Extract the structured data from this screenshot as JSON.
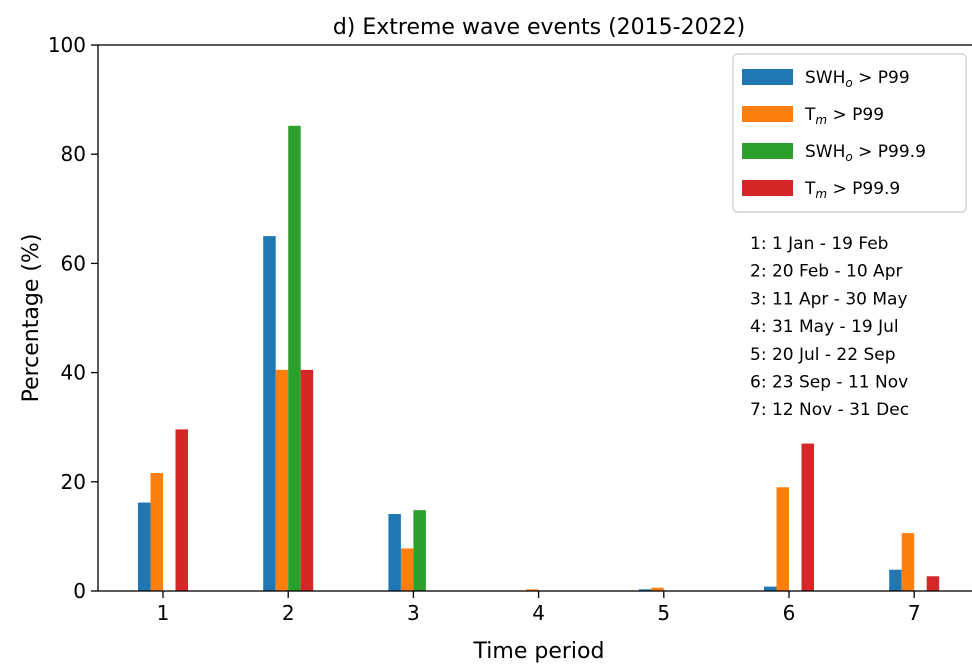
{
  "chart_data": {
    "type": "bar",
    "title": "d) Extreme wave events (2015-2022)",
    "xlabel": "Time period",
    "ylabel": "Percentage (%)",
    "ylim": [
      0,
      100
    ],
    "yticks": [
      0,
      20,
      40,
      60,
      80,
      100
    ],
    "categories": [
      "1",
      "2",
      "3",
      "4",
      "5",
      "6",
      "7"
    ],
    "series": [
      {
        "name": "SWH",
        "name_sub": "o",
        "name_rest": " > P99",
        "color": "#1f77b4",
        "values": [
          16.2,
          65.0,
          14.1,
          0.0,
          0.3,
          0.8,
          3.9
        ]
      },
      {
        "name": "T",
        "name_sub": "m",
        "name_rest": " > P99",
        "color": "#ff7f0e",
        "values": [
          21.6,
          40.5,
          7.8,
          0.3,
          0.6,
          19.0,
          10.6
        ]
      },
      {
        "name": "SWH",
        "name_sub": "o",
        "name_rest": " > P99.9",
        "color": "#2ca02c",
        "values": [
          0.0,
          85.2,
          14.8,
          0.0,
          0.0,
          0.0,
          0.0
        ]
      },
      {
        "name": "T",
        "name_sub": "m",
        "name_rest": " > P99.9",
        "color": "#d62728",
        "values": [
          29.6,
          40.5,
          0.0,
          0.0,
          0.0,
          27.0,
          2.7
        ]
      }
    ],
    "legend_position": "top-right",
    "grid": false,
    "annotation_lines": [
      "1: 1 Jan - 19 Feb",
      "2: 20 Feb - 10 Apr",
      "3: 11 Apr - 30 May",
      "4: 31 May - 19 Jul",
      "5: 20 Jul - 22 Sep",
      "6: 23 Sep - 11 Nov",
      "7: 12 Nov - 31 Dec"
    ]
  }
}
